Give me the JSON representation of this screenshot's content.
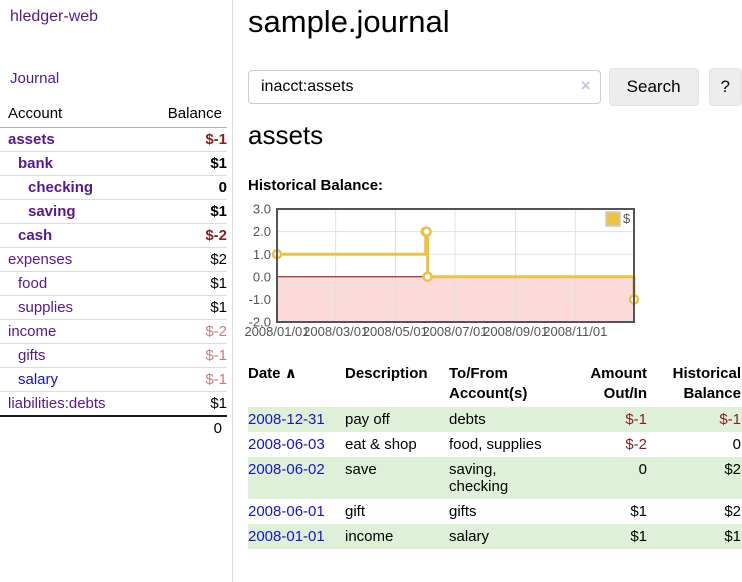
{
  "colors": {
    "link_purple": "#551a8b",
    "link_blue": "#1515c8",
    "negative_strong": "#8b2020",
    "negative_light": "#c57f7f",
    "row_green": "#dff0d8",
    "series_gold": "#edc240",
    "negative_region_pink": "#fcdada",
    "zero_line_red": "#8b0000"
  },
  "sidebar": {
    "brand": "hledger-web",
    "journal_link": "Journal",
    "accounts_table": {
      "header_account": "Account",
      "header_balance": "Balance",
      "rows": [
        {
          "account": "assets",
          "depth": 0,
          "bold": true,
          "balance": "$-1",
          "balance_style": "neg-strong"
        },
        {
          "account": "bank",
          "depth": 1,
          "bold": true,
          "balance": "$1",
          "balance_style": "pos-strong"
        },
        {
          "account": "checking",
          "depth": 2,
          "bold": true,
          "balance": "0",
          "balance_style": "pos-strong"
        },
        {
          "account": "saving",
          "depth": 2,
          "bold": true,
          "balance": "$1",
          "balance_style": "pos-strong"
        },
        {
          "account": "cash",
          "depth": 1,
          "bold": true,
          "balance": "$-2",
          "balance_style": "neg-strong"
        },
        {
          "account": "expenses",
          "depth": 0,
          "bold": false,
          "balance": "$2",
          "balance_style": "pos"
        },
        {
          "account": "food",
          "depth": 1,
          "bold": false,
          "balance": "$1",
          "balance_style": "pos"
        },
        {
          "account": "supplies",
          "depth": 1,
          "bold": false,
          "balance": "$1",
          "balance_style": "pos"
        },
        {
          "account": "income",
          "depth": 0,
          "bold": false,
          "balance": "$-2",
          "balance_style": "neg-light"
        },
        {
          "account": "gifts",
          "depth": 1,
          "bold": false,
          "balance": "$-1",
          "balance_style": "neg-light"
        },
        {
          "account": "salary",
          "depth": 1,
          "bold": false,
          "balance": "$-1",
          "balance_style": "neg-light",
          "link_color": "blue"
        },
        {
          "account": "liabilities:debts",
          "depth": 0,
          "bold": false,
          "balance": "$1",
          "balance_style": "pos"
        }
      ],
      "total": "0"
    }
  },
  "header": {
    "title": "sample.journal",
    "search": {
      "value": "inacct:assets",
      "clear_icon": "×",
      "search_button": "Search",
      "help_button": "?"
    }
  },
  "main": {
    "account_heading": "assets",
    "chart_label": "Historical Balance:",
    "register": {
      "headers": {
        "date": "Date",
        "sort_icon": "∧",
        "description": "Description",
        "accounts": "To/From\nAccount(s)",
        "amount": "Amount\nOut/In",
        "balance": "Historical\nBalance"
      },
      "rows": [
        {
          "date": "2008-12-31",
          "description": "pay off",
          "accounts": "debts",
          "amount": "$-1",
          "amount_neg": true,
          "balance": "$-1",
          "balance_neg": true,
          "green": true
        },
        {
          "date": "2008-06-03",
          "description": "eat & shop",
          "accounts": "food, supplies",
          "amount": "$-2",
          "amount_neg": true,
          "balance": "0",
          "balance_neg": false,
          "green": false
        },
        {
          "date": "2008-06-02",
          "description": "save",
          "accounts": "saving,\nchecking",
          "amount": "0",
          "amount_neg": false,
          "balance": "$2",
          "balance_neg": false,
          "green": true
        },
        {
          "date": "2008-06-01",
          "description": "gift",
          "accounts": "gifts",
          "amount": "$1",
          "amount_neg": false,
          "balance": "$2",
          "balance_neg": false,
          "green": false
        },
        {
          "date": "2008-01-01",
          "description": "income",
          "accounts": "salary",
          "amount": "$1",
          "amount_neg": false,
          "balance": "$1",
          "balance_neg": false,
          "green": true
        }
      ]
    }
  },
  "chart_data": {
    "type": "line",
    "title": "Historical Balance:",
    "step": true,
    "x_range": [
      "2008-01-01",
      "2008-12-31"
    ],
    "ylim": [
      -2,
      3
    ],
    "x_tick_dates": [
      "2008-01-01",
      "2008-03-01",
      "2008-05-01",
      "2008-07-01",
      "2008-09-01",
      "2008-11-01"
    ],
    "x_tick_labels": [
      "2008/01/01",
      "2008/03/01",
      "2008/05/01",
      "2008/07/01",
      "2008/09/01",
      "2008/11/01"
    ],
    "y_ticks": [
      3,
      2,
      1,
      0,
      -1,
      -2
    ],
    "y_tick_labels": [
      "3.0",
      "2.0",
      "1.0",
      "0.0",
      "-1.0",
      "-2.0"
    ],
    "grid": true,
    "negative_region_color": "#fcdada",
    "zero_line_color": "#8b0000",
    "legend_position": "top-right",
    "series": [
      {
        "name": "$",
        "color": "#edc240",
        "points": [
          [
            "2008-01-01",
            1
          ],
          [
            "2008-06-01",
            2
          ],
          [
            "2008-06-02",
            2
          ],
          [
            "2008-06-03",
            0
          ],
          [
            "2008-12-31",
            -1
          ]
        ]
      }
    ]
  }
}
